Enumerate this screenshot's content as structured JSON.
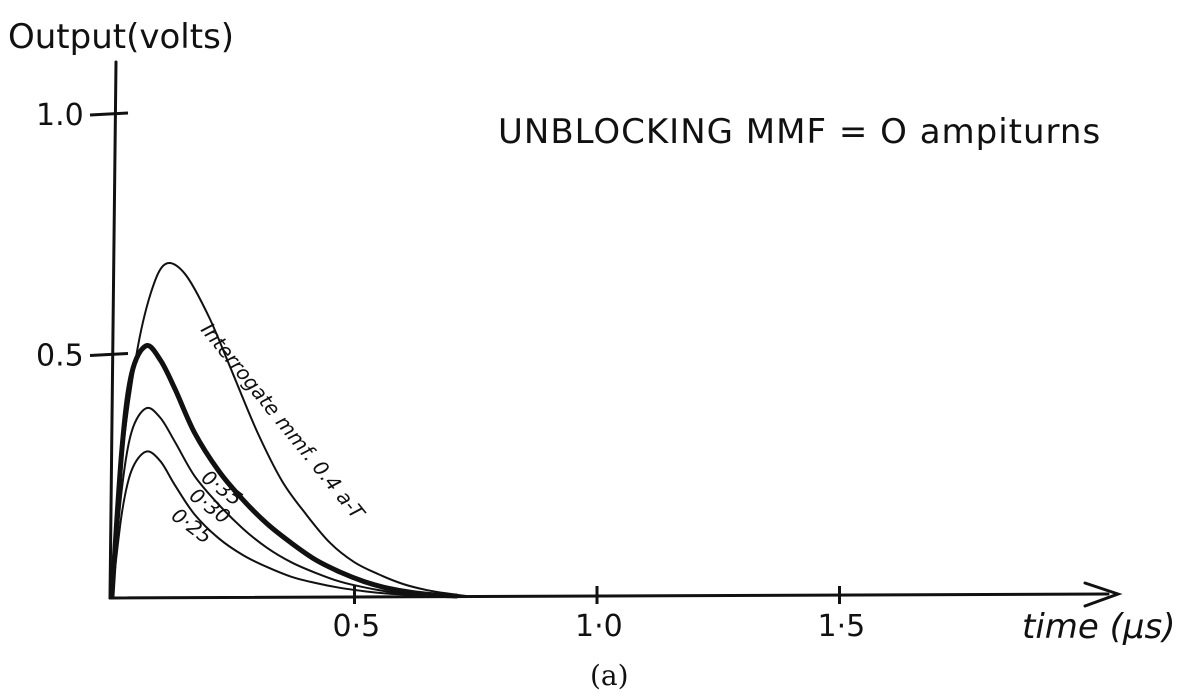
{
  "chart_data": {
    "type": "line",
    "title": "UNBLOCKING MMF = O ampiturns",
    "ylabel": "Output(volts)",
    "xlabel": "time (μs)",
    "caption": "(a)",
    "xlim": [
      0,
      1.55
    ],
    "ylim": [
      0,
      1.0
    ],
    "x_ticks": [
      {
        "value": 0.5,
        "label": "0·5"
      },
      {
        "value": 1.0,
        "label": "1·0"
      },
      {
        "value": 1.5,
        "label": "1·5"
      }
    ],
    "y_ticks": [
      {
        "value": 0.5,
        "label": "0.5"
      },
      {
        "value": 1.0,
        "label": "1.0"
      }
    ],
    "grid": false,
    "legend": "none",
    "series": [
      {
        "name": "Interrogate mmf. 0.4 a-T",
        "label_text": "Interrogate mmf. 0.4 a-T",
        "emphasis": false,
        "x": [
          0,
          0.02,
          0.05,
          0.08,
          0.11,
          0.15,
          0.2,
          0.25,
          0.3,
          0.35,
          0.4,
          0.45,
          0.5,
          0.55,
          0.6,
          0.65,
          0.7,
          0.73
        ],
        "y": [
          0,
          0.28,
          0.5,
          0.63,
          0.69,
          0.67,
          0.58,
          0.46,
          0.34,
          0.24,
          0.17,
          0.11,
          0.07,
          0.045,
          0.025,
          0.012,
          0.004,
          0
        ]
      },
      {
        "name": "0·35",
        "label_text": "0·35",
        "emphasis": true,
        "x": [
          0,
          0.02,
          0.04,
          0.07,
          0.1,
          0.13,
          0.17,
          0.22,
          0.27,
          0.32,
          0.37,
          0.42,
          0.47,
          0.52,
          0.57,
          0.62,
          0.67,
          0.71
        ],
        "y": [
          0,
          0.3,
          0.46,
          0.52,
          0.49,
          0.43,
          0.34,
          0.26,
          0.2,
          0.15,
          0.11,
          0.075,
          0.05,
          0.03,
          0.016,
          0.007,
          0.002,
          0
        ]
      },
      {
        "name": "0·30",
        "label_text": "0·30",
        "emphasis": false,
        "x": [
          0,
          0.02,
          0.04,
          0.07,
          0.1,
          0.13,
          0.17,
          0.22,
          0.27,
          0.32,
          0.37,
          0.42,
          0.47,
          0.52,
          0.57,
          0.62,
          0.67,
          0.7
        ],
        "y": [
          0,
          0.22,
          0.34,
          0.39,
          0.37,
          0.32,
          0.25,
          0.19,
          0.14,
          0.1,
          0.07,
          0.048,
          0.03,
          0.018,
          0.009,
          0.004,
          0.001,
          0
        ]
      },
      {
        "name": "0·25",
        "label_text": "0·25",
        "emphasis": false,
        "x": [
          0,
          0.02,
          0.04,
          0.07,
          0.1,
          0.13,
          0.17,
          0.22,
          0.27,
          0.32,
          0.37,
          0.42,
          0.47,
          0.52,
          0.57,
          0.62,
          0.65
        ],
        "y": [
          0,
          0.17,
          0.26,
          0.3,
          0.28,
          0.23,
          0.17,
          0.12,
          0.085,
          0.06,
          0.04,
          0.027,
          0.017,
          0.01,
          0.005,
          0.002,
          0
        ]
      }
    ]
  }
}
